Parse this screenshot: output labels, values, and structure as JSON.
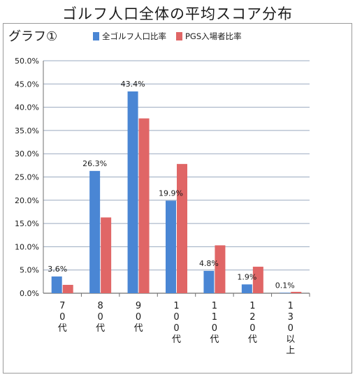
{
  "title": "ゴルフ人口全体の平均スコア分布",
  "graph_label": "グラフ①",
  "colors": {
    "all": "#4a86d4",
    "pgs": "#e06666",
    "grid": "#9aa9bf"
  },
  "chart_data": {
    "type": "bar",
    "categories": [
      "7\n0\n代",
      "8\n0\n代",
      "9\n0\n代",
      "1\n0\n0\n代",
      "1\n1\n0\n代",
      "1\n2\n0\n代",
      "1\n3\n0\n以\n上"
    ],
    "series": [
      {
        "name": "全ゴルフ人口比率",
        "values": [
          3.6,
          26.3,
          43.4,
          19.9,
          4.8,
          1.9,
          0.1
        ]
      },
      {
        "name": "PGS入場者比率",
        "values": [
          1.8,
          16.3,
          37.6,
          27.8,
          10.3,
          5.7,
          0.3
        ]
      }
    ],
    "data_labels": [
      "3.6%",
      "26.3%",
      "43.4%",
      "19.9%",
      "4.8%",
      "1.9%",
      "0.1%"
    ],
    "yticks": [
      "0.0%",
      "5.0%",
      "10.0%",
      "15.0%",
      "20.0%",
      "25.0%",
      "30.0%",
      "35.0%",
      "40.0%",
      "45.0%",
      "50.0%"
    ],
    "ylim": [
      0,
      50
    ],
    "grid": true,
    "legend": "top"
  }
}
